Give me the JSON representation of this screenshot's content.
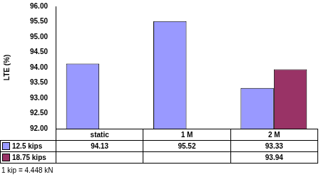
{
  "chart_data": {
    "type": "bar",
    "ylabel": "LTE (%)",
    "categories": [
      "static",
      "1 M",
      "2 M"
    ],
    "series": [
      {
        "name": "12.5 kips",
        "color": "#9999ff",
        "values": [
          94.13,
          95.52,
          93.33
        ]
      },
      {
        "name": "18.75 kips",
        "color": "#993366",
        "values": [
          null,
          null,
          93.94
        ]
      }
    ],
    "ylim": [
      92,
      96
    ],
    "yticks": [
      {
        "value": 92,
        "label": "92.00"
      },
      {
        "value": 92.5,
        "label": "92.50"
      },
      {
        "value": 93,
        "label": "93.00"
      },
      {
        "value": 93.5,
        "label": "93.50"
      },
      {
        "value": 94,
        "label": "94.00"
      },
      {
        "value": 94.5,
        "label": "94.50"
      },
      {
        "value": 95,
        "label": "95.00"
      },
      {
        "value": 95.5,
        "label": "95.50"
      },
      {
        "value": 96,
        "label": "96.00"
      }
    ],
    "grid": false,
    "annotations": [
      "1 kip = 4.448 kN"
    ]
  }
}
